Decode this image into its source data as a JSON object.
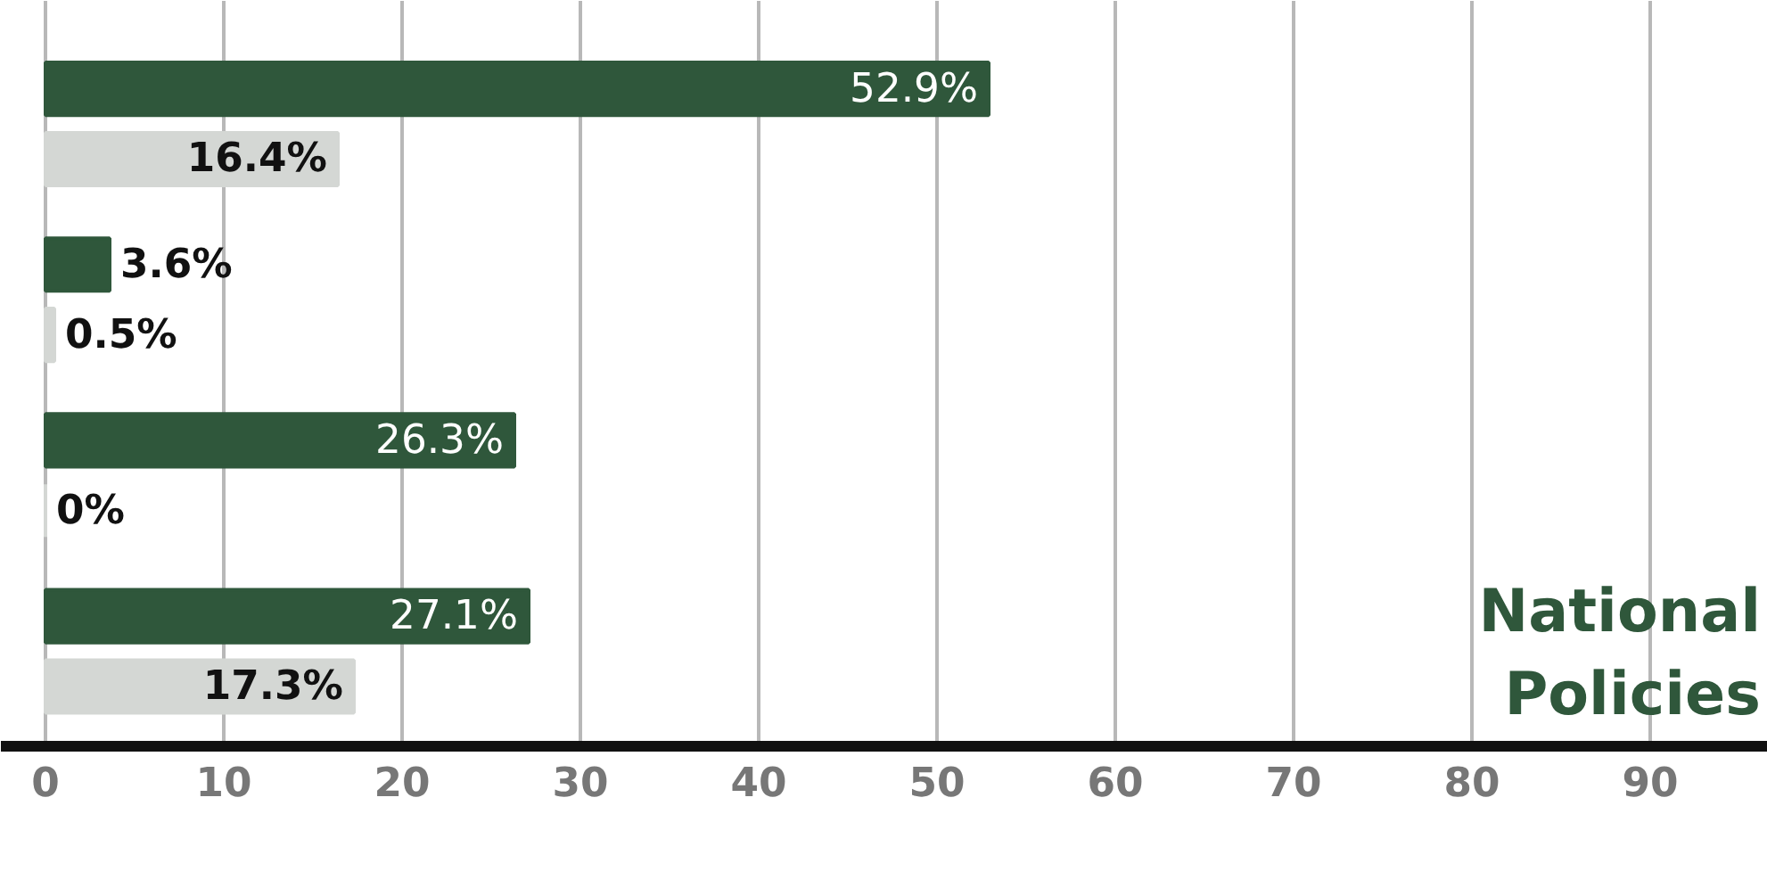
{
  "chart_data": {
    "type": "bar",
    "orientation": "horizontal",
    "categories": [
      null,
      null,
      null,
      null
    ],
    "series": [
      {
        "color": "#2f573b",
        "values": [
          52.9,
          3.6,
          26.3,
          27.1
        ],
        "value_labels": [
          "52.9%",
          "3.6%",
          "26.3%",
          "27.1%"
        ]
      },
      {
        "color": "#d4d7d4",
        "values": [
          16.4,
          0.5,
          0,
          17.3
        ],
        "value_labels": [
          "16.4%",
          "0.5%",
          "0%",
          "17.3%"
        ]
      }
    ],
    "xlim": [
      -2.5,
      96.6
    ],
    "xticks": [
      {
        "value": 0,
        "label": "0"
      },
      10,
      20,
      30,
      40,
      50,
      60,
      70,
      80,
      90
    ],
    "grid": "x",
    "annotations": [
      "National\nPolicies"
    ]
  }
}
